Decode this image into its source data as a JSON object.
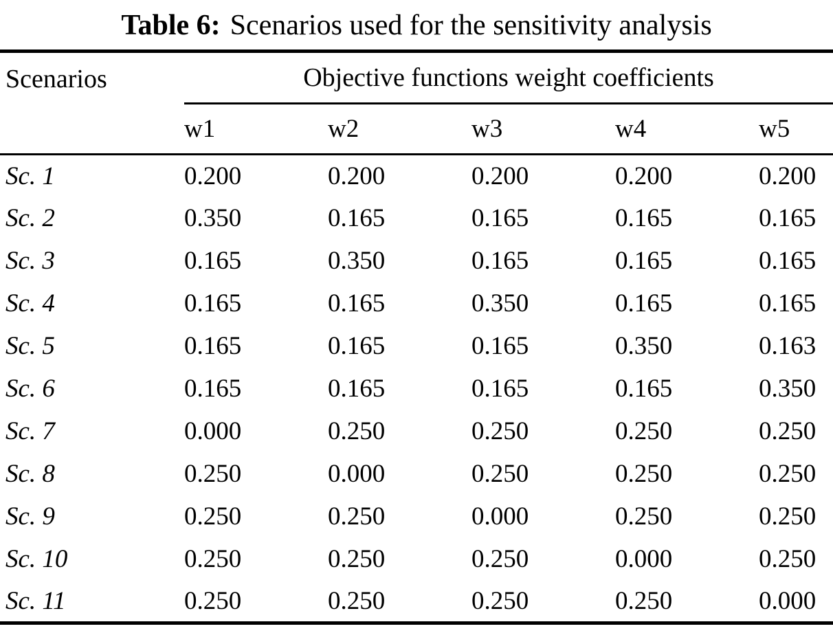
{
  "caption": {
    "label": "Table 6:",
    "text": "Scenarios used for the sensitivity analysis"
  },
  "table": {
    "row_header": "Scenarios",
    "group_header": "Objective functions weight coefficients",
    "columns": [
      "w1",
      "w2",
      "w3",
      "w4",
      "w5"
    ],
    "rows": [
      {
        "scenario": "Sc. 1",
        "values": [
          "0.200",
          "0.200",
          "0.200",
          "0.200",
          "0.200"
        ]
      },
      {
        "scenario": "Sc. 2",
        "values": [
          "0.350",
          "0.165",
          "0.165",
          "0.165",
          "0.165"
        ]
      },
      {
        "scenario": "Sc. 3",
        "values": [
          "0.165",
          "0.350",
          "0.165",
          "0.165",
          "0.165"
        ]
      },
      {
        "scenario": "Sc. 4",
        "values": [
          "0.165",
          "0.165",
          "0.350",
          "0.165",
          "0.165"
        ]
      },
      {
        "scenario": "Sc. 5",
        "values": [
          "0.165",
          "0.165",
          "0.165",
          "0.350",
          "0.163"
        ]
      },
      {
        "scenario": "Sc. 6",
        "values": [
          "0.165",
          "0.165",
          "0.165",
          "0.165",
          "0.350"
        ]
      },
      {
        "scenario": "Sc. 7",
        "values": [
          "0.000",
          "0.250",
          "0.250",
          "0.250",
          "0.250"
        ]
      },
      {
        "scenario": "Sc. 8",
        "values": [
          "0.250",
          "0.000",
          "0.250",
          "0.250",
          "0.250"
        ]
      },
      {
        "scenario": "Sc. 9",
        "values": [
          "0.250",
          "0.250",
          "0.000",
          "0.250",
          "0.250"
        ]
      },
      {
        "scenario": "Sc. 10",
        "values": [
          "0.250",
          "0.250",
          "0.250",
          "0.000",
          "0.250"
        ]
      },
      {
        "scenario": "Sc. 11",
        "values": [
          "0.250",
          "0.250",
          "0.250",
          "0.250",
          "0.000"
        ]
      }
    ]
  }
}
